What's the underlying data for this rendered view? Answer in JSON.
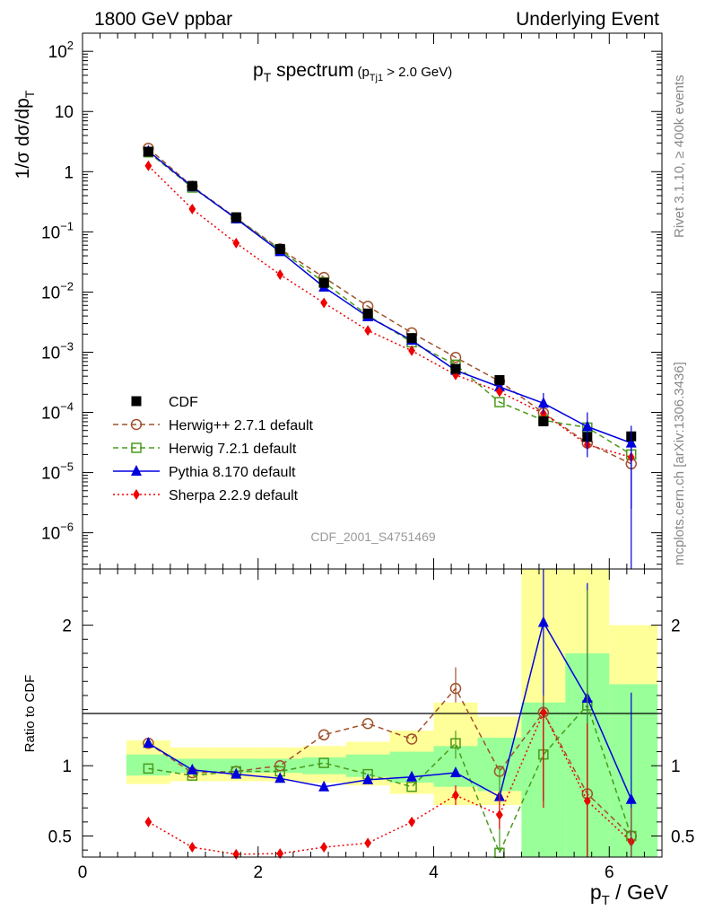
{
  "header": {
    "left": "1800 GeV ppbar",
    "right": "Underlying Event"
  },
  "side_labels": {
    "version": "Rivet 3.1.10, ≥ 400k events",
    "source": "mcplots.cern.ch [arXiv:1306.3436]"
  },
  "chart_data": [
    {
      "type": "line",
      "panel": "main",
      "title": "p_T spectrum (p_Tj1 > 2.0 GeV)",
      "title_main": "p",
      "title_main_sub": "T",
      "title_main_rest": " spectrum",
      "title_cond": "(p",
      "title_cond_sub": "Tj1",
      "title_cond_rest": " > 2.0 GeV)",
      "ylabel": "1/σ dσ/dp_T",
      "ylabel_main": "1/σ dσ/dp",
      "ylabel_sub": "T",
      "yscale": "log",
      "ylim": [
        2.5e-07,
        200
      ],
      "xlim": [
        0,
        6.6
      ],
      "y_tick_labels": [
        "10^-6",
        "10^-5",
        "10^-4",
        "10^-3",
        "10^-2",
        "10^-1",
        "1",
        "10",
        "10^2"
      ],
      "watermark": "CDF_2001_S4751469",
      "legend_position": "center-left",
      "x": [
        0.75,
        1.25,
        1.75,
        2.25,
        2.75,
        3.25,
        3.75,
        4.25,
        4.75,
        5.25,
        5.75,
        6.25
      ],
      "series": [
        {
          "name": "CDF",
          "color": "#000000",
          "marker": "square-filled",
          "values": [
            2.15,
            0.58,
            0.175,
            0.052,
            0.0142,
            0.0044,
            0.00172,
            0.00053,
            0.000345,
            7.1e-05,
            3.9e-05,
            4e-05
          ]
        },
        {
          "name": "Herwig++ 2.7.1 default",
          "color": "#a0522d",
          "marker": "circle-open",
          "dash": "dashed",
          "values": [
            2.45,
            0.57,
            0.17,
            0.052,
            0.0175,
            0.0058,
            0.0021,
            0.00082,
            0.00033,
            9.8e-05,
            3.1e-05,
            1.4e-05
          ]
        },
        {
          "name": "Herwig 7.2.1 default",
          "color": "#4a9a1c",
          "marker": "square-open",
          "dash": "dashed",
          "values": [
            2.1,
            0.545,
            0.168,
            0.05,
            0.0145,
            0.0041,
            0.00146,
            0.00062,
            0.000148,
            7.4e-05,
            5.6e-05,
            2e-05
          ]
        },
        {
          "name": "Pythia 8.170 default",
          "color": "#0000dd",
          "marker": "triangle-filled",
          "dash": "solid",
          "values": [
            2.2,
            0.56,
            0.165,
            0.047,
            0.0121,
            0.0039,
            0.00158,
            0.0005,
            0.000265,
            0.000142,
            5.8e-05,
            3.1e-05
          ]
        },
        {
          "name": "Sherpa 2.2.9 default",
          "color": "#ee0000",
          "marker": "diamond-filled",
          "dash": "dotted",
          "values": [
            1.25,
            0.24,
            0.065,
            0.0195,
            0.0066,
            0.0023,
            0.00106,
            0.00042,
            0.00022,
            9.6e-05,
            2.9e-05,
            1.8e-05
          ]
        }
      ]
    },
    {
      "type": "line",
      "panel": "ratio",
      "ylabel": "Ratio to CDF",
      "xlabel": "p_T / GeV",
      "xlabel_main": "p",
      "xlabel_sub": "T",
      "xlabel_rest": " / GeV",
      "ylim": [
        0.35,
        2.4
      ],
      "xlim": [
        0,
        6.6
      ],
      "x_ticks": [
        0,
        2,
        4,
        6
      ],
      "y_ticks": [
        0.5,
        1,
        2
      ],
      "bins": [
        [
          0.5,
          1.0
        ],
        [
          1.0,
          1.5
        ],
        [
          1.5,
          2.0
        ],
        [
          2.0,
          2.5
        ],
        [
          2.5,
          3.0
        ],
        [
          3.0,
          3.5
        ],
        [
          3.5,
          4.0
        ],
        [
          4.0,
          4.5
        ],
        [
          4.5,
          5.0
        ],
        [
          5.0,
          5.5
        ],
        [
          5.5,
          6.0
        ],
        [
          6.0,
          6.55
        ]
      ],
      "band_stat": [
        [
          0.93,
          1.08
        ],
        [
          0.95,
          1.05
        ],
        [
          0.95,
          1.05
        ],
        [
          0.95,
          1.05
        ],
        [
          0.94,
          1.06
        ],
        [
          0.92,
          1.08
        ],
        [
          0.88,
          1.1
        ],
        [
          0.85,
          1.14
        ],
        [
          0.82,
          1.2
        ],
        [
          0.35,
          1.45
        ],
        [
          0.35,
          1.8
        ],
        [
          0.35,
          1.58
        ]
      ],
      "band_total": [
        [
          0.87,
          1.18
        ],
        [
          0.89,
          1.13
        ],
        [
          0.89,
          1.13
        ],
        [
          0.89,
          1.13
        ],
        [
          0.88,
          1.14
        ],
        [
          0.86,
          1.17
        ],
        [
          0.8,
          1.25
        ],
        [
          0.72,
          1.45
        ],
        [
          0.72,
          1.35
        ],
        [
          0.6,
          2.4
        ],
        [
          0.35,
          2.4
        ],
        [
          0.35,
          2.0
        ]
      ],
      "x": [
        0.75,
        1.25,
        1.75,
        2.25,
        2.75,
        3.25,
        3.75,
        4.25,
        4.75,
        5.25,
        5.75,
        6.25
      ],
      "series": [
        {
          "name": "Herwig++ 2.7.1 default",
          "color": "#a0522d",
          "marker": "circle-open",
          "dash": "dashed",
          "values": [
            1.16,
            0.95,
            0.96,
            1.0,
            1.22,
            1.3,
            1.19,
            1.55,
            0.96,
            1.38,
            0.8,
            0.5
          ]
        },
        {
          "name": "Herwig 7.2.1 default",
          "color": "#4a9a1c",
          "marker": "square-open",
          "dash": "dashed",
          "values": [
            0.98,
            0.93,
            0.96,
            0.96,
            1.02,
            0.94,
            0.85,
            1.16,
            0.38,
            1.08,
            1.43,
            0.5
          ]
        },
        {
          "name": "Pythia 8.170 default",
          "color": "#0000dd",
          "marker": "triangle-filled",
          "dash": "solid",
          "values": [
            1.16,
            0.97,
            0.94,
            0.91,
            0.85,
            0.9,
            0.92,
            0.95,
            0.78,
            2.02,
            1.48,
            0.76
          ]
        },
        {
          "name": "Sherpa 2.2.9 default",
          "color": "#ee0000",
          "marker": "diamond-filled",
          "dash": "dotted",
          "values": [
            0.6,
            0.42,
            0.37,
            0.375,
            0.42,
            0.45,
            0.6,
            0.79,
            0.65,
            1.38,
            0.75,
            0.46
          ]
        }
      ]
    }
  ]
}
